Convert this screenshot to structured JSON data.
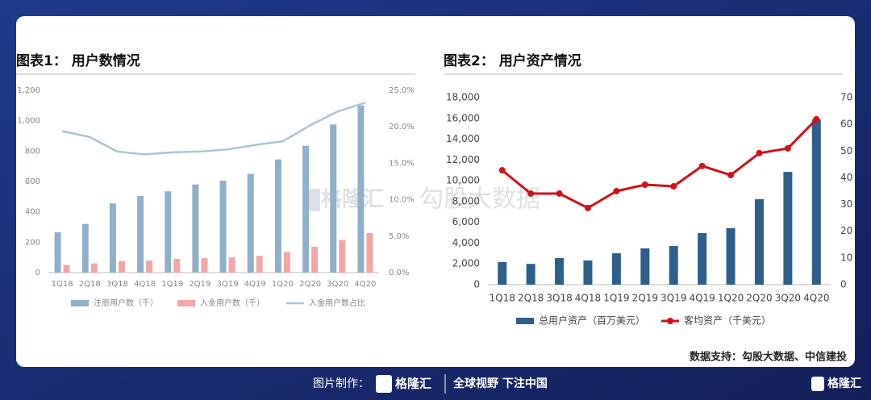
{
  "chart_data": [
    {
      "type": "bar",
      "title": "图表1： 用户数情况",
      "categories": [
        "1Q18",
        "2Q18",
        "3Q18",
        "4Q18",
        "1Q19",
        "2Q19",
        "3Q19",
        "4Q19",
        "1Q20",
        "2Q20",
        "3Q20",
        "4Q20"
      ],
      "series": [
        {
          "name": "注册用户数（千）",
          "color": "#8fb0c8",
          "values": [
            265,
            320,
            455,
            505,
            535,
            580,
            605,
            650,
            745,
            835,
            975,
            1100
          ]
        },
        {
          "name": "入金用户数（千）",
          "color": "#f4a6a6",
          "values": [
            50,
            60,
            75,
            80,
            90,
            95,
            100,
            110,
            135,
            170,
            215,
            260
          ]
        },
        {
          "name": "入金用户数占比",
          "color": "#a9c4d6",
          "type": "line",
          "axis": "y2",
          "values": [
            19.4,
            18.6,
            16.6,
            16.2,
            16.5,
            16.6,
            16.9,
            17.5,
            18.0,
            20.2,
            22.1,
            23.3
          ]
        }
      ],
      "ylim": [
        0,
        1200
      ],
      "yticks": [
        0,
        200,
        400,
        600,
        800,
        {
          "value": 1000,
          "label": "1,000"
        },
        {
          "value": 1200,
          "label": "1,200"
        }
      ],
      "y2lim": [
        0,
        25
      ],
      "y2ticks": [
        {
          "value": 0,
          "label": "0.0%"
        },
        {
          "value": 5,
          "label": "5.0%"
        },
        {
          "value": 10,
          "label": "10.0%"
        },
        {
          "value": 15,
          "label": "15.0%"
        },
        {
          "value": 20,
          "label": "20.0%"
        },
        {
          "value": 25,
          "label": "25.0%"
        }
      ],
      "grid": false
    },
    {
      "type": "bar",
      "title": "图表2： 用户资产情况",
      "categories": [
        "1Q18",
        "2Q18",
        "3Q18",
        "4Q18",
        "1Q19",
        "2Q19",
        "3Q19",
        "4Q19",
        "1Q20",
        "2Q20",
        "3Q20",
        "4Q20"
      ],
      "series": [
        {
          "name": "总用户资产（百万美元）",
          "color": "#2e5f8a",
          "values": [
            2170,
            2000,
            2560,
            2330,
            3020,
            3490,
            3720,
            4960,
            5430,
            8220,
            10850,
            15900
          ]
        },
        {
          "name": "客均资产（千美元）",
          "color": "#d0121b",
          "type": "line",
          "markers": true,
          "axis": "y2",
          "values": [
            42.8,
            34.1,
            34.1,
            28.7,
            35.0,
            37.4,
            36.8,
            44.4,
            41.0,
            49.2,
            51.0,
            61.9
          ]
        }
      ],
      "ylim": [
        0,
        18000
      ],
      "yticks": [
        0,
        {
          "value": 2000,
          "label": "2,000"
        },
        {
          "value": 4000,
          "label": "4,000"
        },
        {
          "value": 6000,
          "label": "6,000"
        },
        {
          "value": 8000,
          "label": "8,000"
        },
        {
          "value": 10000,
          "label": "10,000"
        },
        {
          "value": 12000,
          "label": "12,000"
        },
        {
          "value": 14000,
          "label": "14,000"
        },
        {
          "value": 16000,
          "label": "16,000"
        },
        {
          "value": 18000,
          "label": "18,000"
        }
      ],
      "y2lim": [
        0,
        70
      ],
      "y2ticks": [
        0,
        10,
        20,
        30,
        40,
        50,
        60,
        70
      ],
      "grid": false
    }
  ],
  "source": "数据支持：勾股大数据、中信建投",
  "watermark": {
    "brand": "格隆汇",
    "name": "勾股大数据"
  },
  "footer": {
    "made_by": "图片制作：",
    "brand": "格隆汇",
    "slogan": "全球视野 下注中国"
  }
}
